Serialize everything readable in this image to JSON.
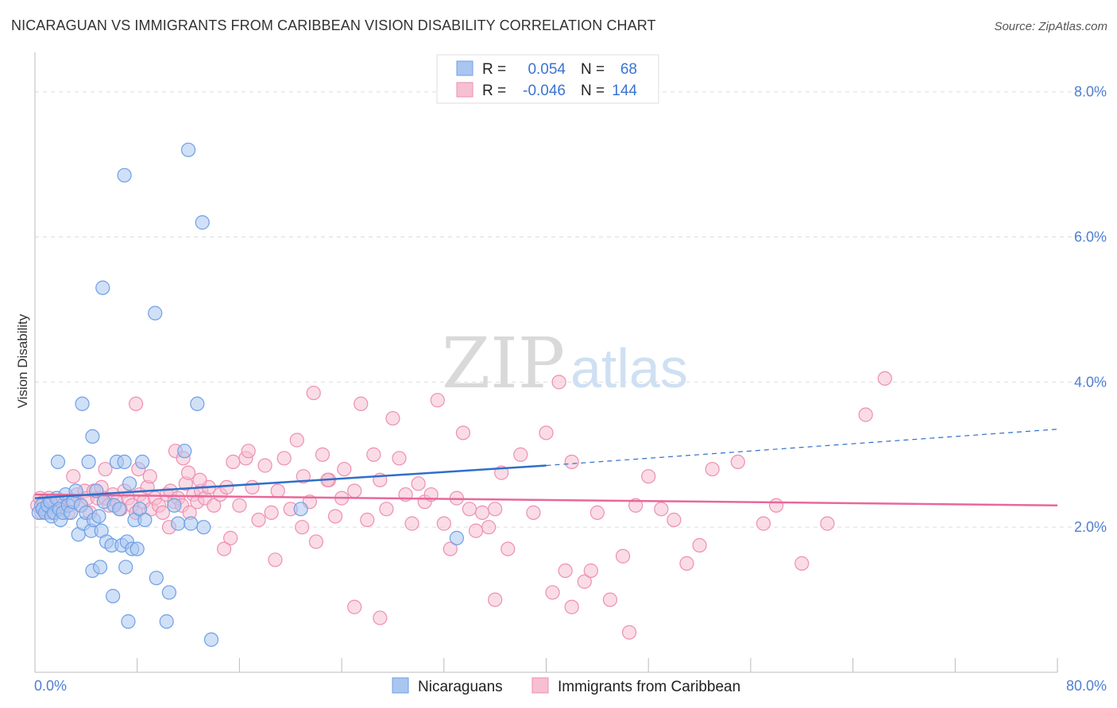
{
  "header": {
    "title": "NICARAGUAN VS IMMIGRANTS FROM CARIBBEAN VISION DISABILITY CORRELATION CHART",
    "source": "Source: ZipAtlas.com"
  },
  "watermark": {
    "zip": "ZIP",
    "atlas": "atlas"
  },
  "stats": {
    "r_label": "R =",
    "n_label": "N =",
    "rows": [
      {
        "r": "0.054",
        "n": "68"
      },
      {
        "r": "-0.046",
        "n": "144"
      }
    ]
  },
  "colors": {
    "blue_fill": "#a9c6f1",
    "blue_stroke": "#6f9fe6",
    "blue_line": "#2f6fc9",
    "pink_fill": "#f6bfd2",
    "pink_stroke": "#ee8fb0",
    "pink_line": "#e8689a",
    "grid": "#dddddd",
    "tick_text": "#4f7fd1"
  },
  "chart_data": {
    "type": "scatter",
    "title": "NICARAGUAN VS IMMIGRANTS FROM CARIBBEAN VISION DISABILITY CORRELATION CHART",
    "xlabel": "",
    "ylabel": "Vision Disability",
    "xlim": [
      0,
      80
    ],
    "ylim": [
      0,
      8.5
    ],
    "x_tick_labels": [
      "0.0%",
      "80.0%"
    ],
    "y_ticks": [
      2,
      4,
      6,
      8
    ],
    "y_tick_labels": [
      "2.0%",
      "4.0%",
      "6.0%",
      "8.0%"
    ],
    "grid": true,
    "legend_position": "bottom",
    "series": [
      {
        "name": "Nicaraguans",
        "color": "#a9c6f1",
        "r": 0.054,
        "n": 68,
        "trend": {
          "solid": [
            [
              0,
              2.4
            ],
            [
              40,
              2.85
            ]
          ],
          "dashed": [
            [
              40,
              2.85
            ],
            [
              80,
              3.35
            ]
          ]
        },
        "points": [
          [
            0.3,
            2.2
          ],
          [
            0.5,
            2.3
          ],
          [
            0.6,
            2.25
          ],
          [
            0.8,
            2.2
          ],
          [
            1.0,
            2.3
          ],
          [
            1.2,
            2.35
          ],
          [
            1.3,
            2.15
          ],
          [
            1.5,
            2.2
          ],
          [
            1.7,
            2.4
          ],
          [
            1.9,
            2.25
          ],
          [
            2.0,
            2.1
          ],
          [
            2.2,
            2.2
          ],
          [
            2.4,
            2.45
          ],
          [
            2.6,
            2.3
          ],
          [
            1.8,
            2.9
          ],
          [
            2.8,
            2.2
          ],
          [
            3.0,
            2.35
          ],
          [
            3.2,
            2.5
          ],
          [
            3.4,
            1.9
          ],
          [
            3.6,
            2.3
          ],
          [
            3.8,
            2.05
          ],
          [
            4.0,
            2.2
          ],
          [
            4.2,
            2.9
          ],
          [
            4.4,
            1.95
          ],
          [
            4.6,
            2.1
          ],
          [
            4.8,
            2.5
          ],
          [
            5.0,
            2.15
          ],
          [
            5.2,
            1.95
          ],
          [
            5.4,
            2.35
          ],
          [
            5.6,
            1.8
          ],
          [
            6.0,
            1.75
          ],
          [
            6.2,
            2.3
          ],
          [
            6.4,
            2.9
          ],
          [
            6.6,
            2.25
          ],
          [
            6.8,
            1.75
          ],
          [
            7.0,
            2.9
          ],
          [
            7.2,
            1.8
          ],
          [
            7.4,
            2.6
          ],
          [
            7.6,
            1.7
          ],
          [
            7.8,
            2.1
          ],
          [
            8.0,
            1.7
          ],
          [
            8.2,
            2.25
          ],
          [
            8.4,
            2.9
          ],
          [
            8.6,
            2.1
          ],
          [
            4.5,
            1.4
          ],
          [
            5.1,
            1.45
          ],
          [
            6.1,
            1.05
          ],
          [
            7.1,
            1.45
          ],
          [
            9.5,
            1.3
          ],
          [
            10.5,
            1.1
          ],
          [
            7.3,
            0.7
          ],
          [
            10.3,
            0.7
          ],
          [
            13.8,
            0.45
          ],
          [
            11.2,
            2.05
          ],
          [
            13.2,
            2.0
          ],
          [
            12.2,
            2.05
          ],
          [
            10.9,
            2.3
          ],
          [
            11.7,
            3.05
          ],
          [
            12.7,
            3.7
          ],
          [
            3.7,
            3.7
          ],
          [
            4.5,
            3.25
          ],
          [
            5.3,
            5.3
          ],
          [
            9.4,
            4.95
          ],
          [
            7.0,
            6.85
          ],
          [
            12.0,
            7.2
          ],
          [
            13.1,
            6.2
          ],
          [
            20.8,
            2.25
          ],
          [
            33.0,
            1.85
          ]
        ]
      },
      {
        "name": "Immigrants from Caribbean",
        "color": "#f6bfd2",
        "r": -0.046,
        "n": 144,
        "trend": {
          "solid": [
            [
              0,
              2.45
            ],
            [
              80,
              2.3
            ]
          ]
        },
        "points": [
          [
            0.2,
            2.3
          ],
          [
            0.4,
            2.4
          ],
          [
            0.5,
            2.2
          ],
          [
            0.7,
            2.35
          ],
          [
            0.9,
            2.25
          ],
          [
            1.1,
            2.4
          ],
          [
            1.3,
            2.2
          ],
          [
            1.6,
            2.3
          ],
          [
            1.8,
            2.35
          ],
          [
            2.0,
            2.25
          ],
          [
            2.2,
            2.3
          ],
          [
            2.6,
            2.2
          ],
          [
            2.9,
            2.35
          ],
          [
            3.3,
            2.45
          ],
          [
            3.6,
            2.3
          ],
          [
            3.9,
            2.5
          ],
          [
            4.1,
            2.4
          ],
          [
            4.3,
            2.2
          ],
          [
            4.6,
            2.5
          ],
          [
            4.9,
            2.4
          ],
          [
            5.2,
            2.55
          ],
          [
            5.5,
            2.4
          ],
          [
            5.8,
            2.3
          ],
          [
            6.1,
            2.45
          ],
          [
            6.4,
            2.35
          ],
          [
            6.7,
            2.25
          ],
          [
            7.0,
            2.5
          ],
          [
            7.3,
            2.4
          ],
          [
            7.6,
            2.3
          ],
          [
            7.9,
            2.2
          ],
          [
            8.2,
            2.45
          ],
          [
            8.5,
            2.35
          ],
          [
            8.8,
            2.55
          ],
          [
            9.1,
            2.25
          ],
          [
            9.4,
            2.4
          ],
          [
            9.7,
            2.3
          ],
          [
            10.0,
            2.2
          ],
          [
            10.3,
            2.45
          ],
          [
            10.6,
            2.5
          ],
          [
            10.9,
            2.35
          ],
          [
            11.2,
            2.4
          ],
          [
            11.5,
            2.3
          ],
          [
            11.8,
            2.6
          ],
          [
            12.1,
            2.2
          ],
          [
            12.4,
            2.45
          ],
          [
            12.7,
            2.35
          ],
          [
            13.0,
            2.5
          ],
          [
            13.3,
            2.4
          ],
          [
            13.6,
            2.55
          ],
          [
            14.0,
            2.3
          ],
          [
            3.0,
            2.7
          ],
          [
            5.5,
            2.8
          ],
          [
            8.1,
            2.8
          ],
          [
            10.5,
            2.0
          ],
          [
            11.0,
            3.05
          ],
          [
            12.0,
            2.75
          ],
          [
            9.0,
            2.7
          ],
          [
            7.9,
            3.7
          ],
          [
            11.6,
            2.95
          ],
          [
            12.9,
            2.65
          ],
          [
            14.5,
            2.45
          ],
          [
            15.0,
            2.55
          ],
          [
            15.5,
            2.9
          ],
          [
            16.0,
            2.3
          ],
          [
            16.5,
            2.95
          ],
          [
            17.0,
            2.55
          ],
          [
            17.5,
            2.1
          ],
          [
            18.0,
            2.85
          ],
          [
            18.5,
            2.2
          ],
          [
            19.0,
            2.5
          ],
          [
            19.5,
            2.95
          ],
          [
            20.0,
            2.25
          ],
          [
            20.5,
            3.2
          ],
          [
            21.0,
            2.7
          ],
          [
            21.5,
            2.35
          ],
          [
            22.0,
            1.8
          ],
          [
            22.5,
            3.0
          ],
          [
            23.0,
            2.65
          ],
          [
            23.5,
            2.15
          ],
          [
            24.0,
            2.4
          ],
          [
            15.3,
            1.85
          ],
          [
            14.8,
            1.7
          ],
          [
            16.7,
            3.05
          ],
          [
            18.8,
            1.55
          ],
          [
            20.9,
            2.0
          ],
          [
            21.8,
            3.85
          ],
          [
            22.9,
            2.65
          ],
          [
            24.2,
            2.8
          ],
          [
            25.0,
            2.5
          ],
          [
            25.5,
            3.7
          ],
          [
            26.0,
            2.1
          ],
          [
            26.5,
            3.0
          ],
          [
            27.0,
            2.65
          ],
          [
            27.5,
            2.25
          ],
          [
            28.0,
            3.5
          ],
          [
            28.5,
            2.95
          ],
          [
            29.0,
            2.45
          ],
          [
            29.5,
            2.05
          ],
          [
            30.0,
            2.6
          ],
          [
            30.5,
            2.35
          ],
          [
            31.0,
            2.45
          ],
          [
            31.5,
            3.75
          ],
          [
            32.0,
            2.05
          ],
          [
            32.5,
            1.7
          ],
          [
            33.0,
            2.4
          ],
          [
            33.5,
            3.3
          ],
          [
            34.0,
            2.25
          ],
          [
            34.5,
            1.95
          ],
          [
            35.0,
            2.2
          ],
          [
            35.5,
            2.0
          ],
          [
            36.0,
            2.25
          ],
          [
            36.5,
            2.75
          ],
          [
            37.0,
            1.7
          ],
          [
            38.0,
            3.0
          ],
          [
            39.0,
            2.2
          ],
          [
            40.0,
            3.3
          ],
          [
            41.0,
            4.0
          ],
          [
            42.0,
            2.9
          ],
          [
            43.0,
            1.25
          ],
          [
            44.0,
            2.2
          ],
          [
            45.0,
            1.0
          ],
          [
            46.0,
            1.6
          ],
          [
            47.0,
            2.3
          ],
          [
            48.0,
            2.7
          ],
          [
            49.0,
            2.25
          ],
          [
            50.0,
            2.1
          ],
          [
            51.0,
            1.5
          ],
          [
            52.0,
            1.75
          ],
          [
            53.0,
            2.8
          ],
          [
            55.0,
            2.9
          ],
          [
            57.0,
            2.05
          ],
          [
            58.0,
            2.3
          ],
          [
            60.0,
            1.5
          ],
          [
            62.0,
            2.05
          ],
          [
            65.0,
            3.55
          ],
          [
            66.5,
            4.05
          ],
          [
            25.0,
            0.9
          ],
          [
            27.0,
            0.75
          ],
          [
            36.0,
            1.0
          ],
          [
            46.5,
            0.55
          ],
          [
            42.0,
            0.9
          ],
          [
            40.5,
            1.1
          ],
          [
            43.5,
            1.4
          ],
          [
            41.5,
            1.4
          ]
        ]
      }
    ]
  },
  "legend": {
    "items": [
      {
        "label": "Nicaraguans"
      },
      {
        "label": "Immigrants from Caribbean"
      }
    ]
  }
}
